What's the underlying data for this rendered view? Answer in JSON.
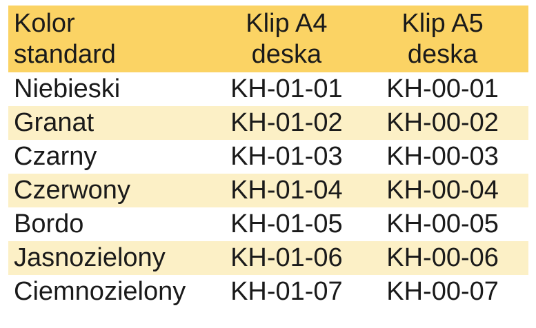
{
  "colors": {
    "header_bg": "#fbd364",
    "row_alt_bg": "#fcf0c6",
    "row_bg": "#ffffff",
    "text": "#1a1a1a"
  },
  "table": {
    "headers": {
      "color": "Kolor\nstandard",
      "a4": "Klip A4\ndeska",
      "a5": "Klip A5\ndeska"
    },
    "rows": [
      {
        "color": "Niebieski",
        "a4": "KH-01-01",
        "a5": "KH-00-01"
      },
      {
        "color": "Granat",
        "a4": "KH-01-02",
        "a5": "KH-00-02"
      },
      {
        "color": "Czarny",
        "a4": "KH-01-03",
        "a5": "KH-00-03"
      },
      {
        "color": "Czerwony",
        "a4": "KH-01-04",
        "a5": "KH-00-04"
      },
      {
        "color": "Bordo",
        "a4": "KH-01-05",
        "a5": "KH-00-05"
      },
      {
        "color": "Jasnozielony",
        "a4": "KH-01-06",
        "a5": "KH-00-06"
      },
      {
        "color": "Ciemnozielony",
        "a4": "KH-01-07",
        "a5": "KH-00-07"
      }
    ]
  }
}
